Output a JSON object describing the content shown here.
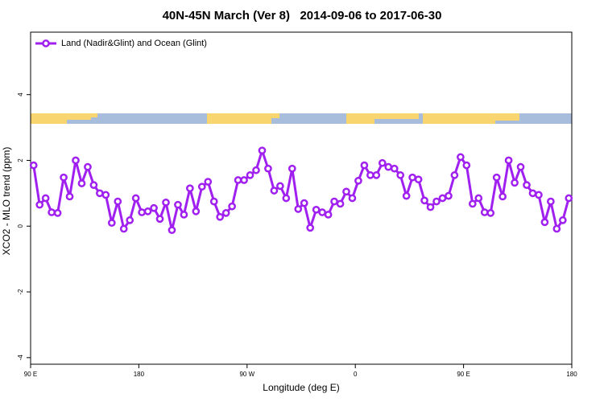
{
  "chart_data": {
    "type": "line",
    "title": "40N-45N March (Ver 8)   2014-09-06 to 2017-06-30",
    "x_label": "Longitude (deg E)",
    "y_label": "XCO2 - MLO trend (ppm)",
    "x": [
      92.5,
      97.5,
      102.5,
      107.5,
      112.5,
      117.5,
      122.5,
      127.5,
      132.5,
      137.5,
      142.5,
      147.5,
      152.5,
      157.5,
      162.5,
      167.5,
      172.5,
      177.5,
      182.5,
      187.5,
      192.5,
      197.5,
      202.5,
      207.5,
      212.5,
      217.5,
      222.5,
      227.5,
      232.5,
      237.5,
      242.5,
      247.5,
      252.5,
      257.5,
      262.5,
      267.5,
      272.5,
      277.5,
      282.5,
      287.5,
      292.5,
      297.5,
      302.5,
      307.5,
      312.5,
      317.5,
      322.5,
      327.5,
      332.5,
      337.5,
      342.5,
      347.5,
      352.5,
      357.5,
      362.5,
      367.5,
      372.5,
      377.5,
      382.5,
      387.5,
      392.5,
      397.5,
      402.5,
      407.5,
      412.5,
      417.5,
      422.5,
      427.5,
      432.5,
      437.5,
      442.5,
      447.5,
      452.5,
      457.5,
      462.5,
      467.5,
      472.5,
      477.5,
      482.5,
      487.5,
      492.5,
      497.5,
      502.5,
      507.5,
      512.5,
      517.5,
      522.5,
      527.5,
      532.5,
      537.5
    ],
    "series": [
      {
        "name": "Land (Nadir&Glint) and Ocean (Glint)",
        "color": "#a020f0",
        "values": [
          1.85,
          0.65,
          0.85,
          0.42,
          0.4,
          1.48,
          0.9,
          2.0,
          1.3,
          1.8,
          1.25,
          1.0,
          0.95,
          0.1,
          0.75,
          -0.08,
          0.18,
          0.85,
          0.42,
          0.45,
          0.55,
          0.22,
          0.72,
          -0.12,
          0.65,
          0.35,
          1.15,
          0.45,
          1.2,
          1.35,
          0.75,
          0.28,
          0.4,
          0.6,
          1.4,
          1.4,
          1.55,
          1.7,
          2.3,
          1.75,
          1.08,
          1.22,
          0.85,
          1.75,
          0.52,
          0.7,
          -0.05,
          0.5,
          0.42,
          0.35,
          0.75,
          0.68,
          1.05,
          0.85,
          1.38,
          1.85,
          1.55,
          1.55,
          1.92,
          1.8,
          1.75,
          1.55,
          0.92,
          1.48,
          1.42,
          0.78,
          0.58,
          0.75,
          0.85,
          0.92,
          1.55,
          2.1,
          1.85,
          0.68,
          0.85,
          0.42,
          0.4,
          1.48,
          0.9,
          2.0,
          1.32,
          1.8,
          1.25,
          1.0,
          0.95,
          0.12,
          0.75,
          -0.08,
          0.18,
          0.85
        ]
      }
    ],
    "xlim": [
      90,
      540
    ],
    "xticks": [
      {
        "value": 90,
        "label": "90 E"
      },
      180,
      {
        "value": 270,
        "label": "90 W"
      },
      {
        "value": 360,
        "label": "0"
      },
      {
        "value": 450,
        "label": "90 E"
      },
      {
        "value": 540,
        "label": "180"
      }
    ],
    "ylim": [
      -4.2,
      5.9
    ],
    "yticks": [
      -4,
      -2,
      0,
      2,
      4
    ],
    "grid": false,
    "legend": "top-left"
  }
}
